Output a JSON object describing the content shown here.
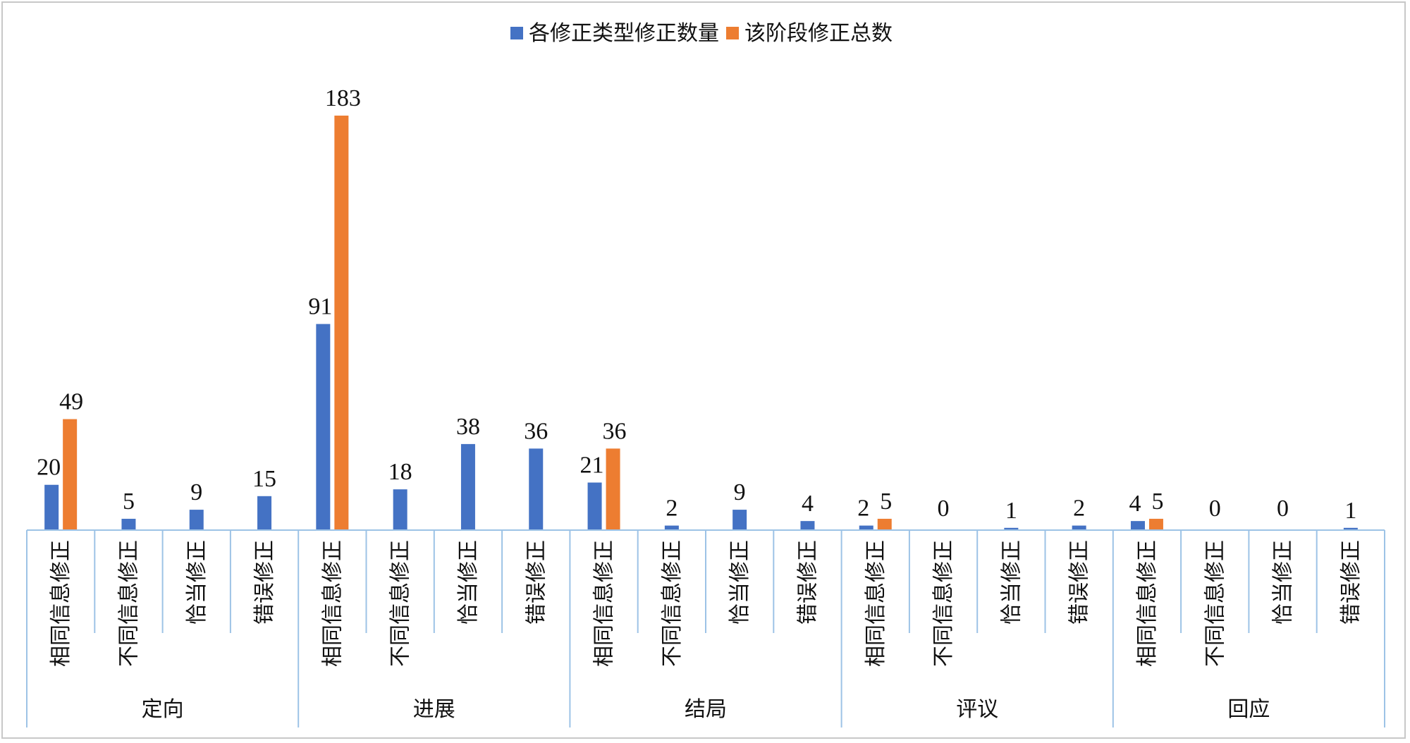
{
  "chart_data": {
    "type": "bar",
    "legend": {
      "position": "top-center"
    },
    "series_colors": [
      "#4472C4",
      "#ED7D31"
    ],
    "groups": [
      {
        "name": "定向",
        "categories": [
          "相同信息修正",
          "不同信息修正",
          "恰当修正",
          "错误修正"
        ]
      },
      {
        "name": "进展",
        "categories": [
          "相同信息修正",
          "不同信息修正",
          "恰当修正",
          "错误修正"
        ]
      },
      {
        "name": "结局",
        "categories": [
          "相同信息修正",
          "不同信息修正",
          "恰当修正",
          "错误修正"
        ]
      },
      {
        "name": "评议",
        "categories": [
          "相同信息修正",
          "不同信息修正",
          "恰当修正",
          "错误修正"
        ]
      },
      {
        "name": "回应",
        "categories": [
          "相同信息修正",
          "不同信息修正",
          "恰当修正",
          "错误修正"
        ]
      }
    ],
    "series": [
      {
        "name": "各修正类型修正数量",
        "values": [
          20,
          5,
          9,
          15,
          91,
          18,
          38,
          36,
          21,
          2,
          9,
          4,
          2,
          0,
          1,
          2,
          4,
          0,
          0,
          1
        ]
      },
      {
        "name": "该阶段修正总数",
        "values": [
          49,
          null,
          null,
          null,
          183,
          null,
          null,
          null,
          36,
          null,
          null,
          null,
          5,
          null,
          null,
          null,
          5,
          null,
          null,
          null
        ]
      }
    ],
    "ylim": [
      0,
      183
    ]
  }
}
